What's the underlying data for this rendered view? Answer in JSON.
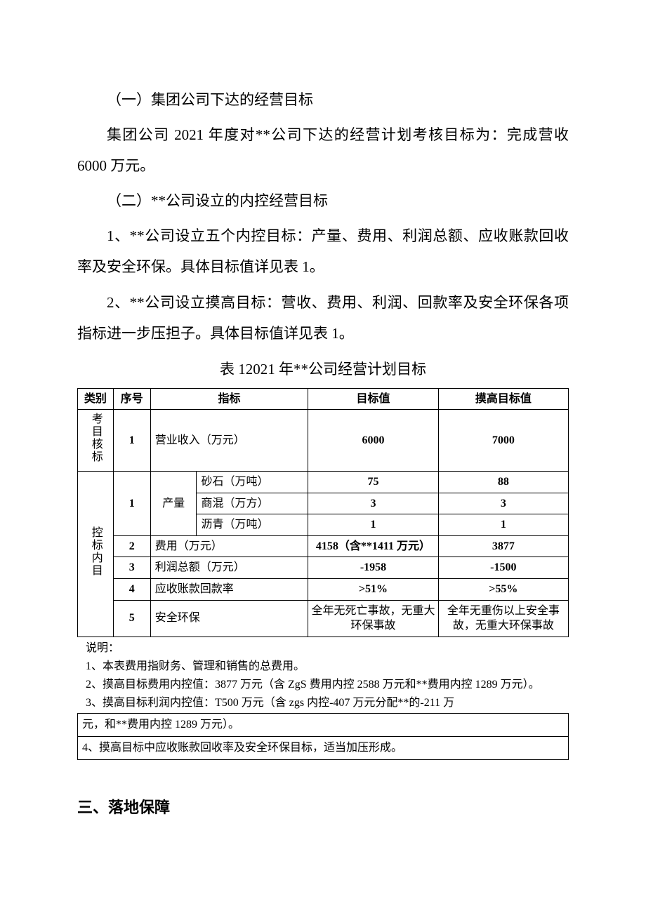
{
  "body": {
    "p1": "（一）集团公司下达的经营目标",
    "p2": "集团公司 2021 年度对**公司下达的经营计划考核目标为：完成营收 6000 万元。",
    "p3": "（二）**公司设立的内控经营目标",
    "p4": "1、**公司设立五个内控目标：产量、费用、利润总额、应收账款回收率及安全环保。具体目标值详见表 1。",
    "p5": "2、**公司设立摸高目标：营收、费用、利润、回款率及安全环保各项指标进一步压担子。具体目标值详见表 1。"
  },
  "table": {
    "caption": "表 12021 年**公司经营计划目标",
    "headers": {
      "category": "类别",
      "index": "序号",
      "indicator": "指标",
      "target": "目标值",
      "high_target": "摸高目标值"
    },
    "cat1": "考目核标",
    "cat2": "控标内目",
    "prod_label": "产量",
    "rows": {
      "r1": {
        "idx": "1",
        "ind": "营业收入（万元）",
        "tgt": "6000",
        "high": "7000"
      },
      "r2a": {
        "idx": "1",
        "ind": "砂石（万吨）",
        "tgt": "75",
        "high": "88"
      },
      "r2b": {
        "ind": "商混（万方）",
        "tgt": "3",
        "high": "3"
      },
      "r2c": {
        "ind": "沥青（万吨）",
        "tgt": "1",
        "high": "1"
      },
      "r3": {
        "idx": "2",
        "ind": "费用（万元）",
        "tgt": "4158（含**1411 万元）",
        "high": "3877"
      },
      "r4": {
        "idx": "3",
        "ind": "利润总额（万元）",
        "tgt": "-1958",
        "high": "-1500"
      },
      "r5": {
        "idx": "4",
        "ind": "应收账款回款率",
        "tgt": ">51%",
        "high": ">55%"
      },
      "r6": {
        "idx": "5",
        "ind": "安全环保",
        "tgt": "全年无死亡事故，无重大环保事故",
        "high": "全年无重伤以上安全事故，无重大环保事故"
      }
    }
  },
  "notes": {
    "lead": "说明：",
    "n1": "1、本表费用指财务、管理和销售的总费用。",
    "n2": "2、摸高目标费用内控值：3877 万元（含 ZgS 费用内控 2588 万元和**费用内控 1289 万元）。",
    "n3a": "3、摸高目标利润内控值：T500 万元（含 zgs 内控-407 万元分配**的-211 万",
    "n3b": "元，和**费用内控 1289 万元）。",
    "n4": "4、摸高目标中应收账款回收率及安全环保目标，适当加压形成。"
  },
  "section3": "三、落地保障"
}
